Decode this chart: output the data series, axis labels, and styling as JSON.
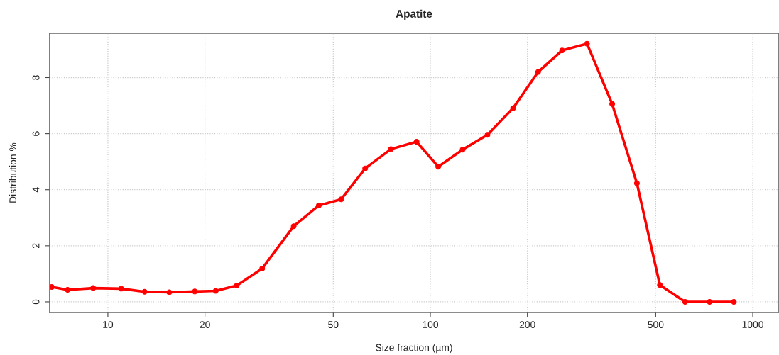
{
  "chart_data": {
    "type": "line",
    "title": "Apatite",
    "xlabel": "Size fraction (µm)",
    "ylabel": "Distribution %",
    "x": [
      6.7,
      7.5,
      9.0,
      11.0,
      13.0,
      15.5,
      18.6,
      21.6,
      25.1,
      30.1,
      37.7,
      45.1,
      52.9,
      62.8,
      75.5,
      90.7,
      105.8,
      125.9,
      150.4,
      180.6,
      215.9,
      256.3,
      306.2,
      366.4,
      437.2,
      515.2,
      616.8,
      734.7,
      873.5
    ],
    "series": [
      {
        "color": "#ff0000",
        "values": [
          0.53,
          0.43,
          0.49,
          0.47,
          0.36,
          0.34,
          0.37,
          0.39,
          0.58,
          1.19,
          2.7,
          3.44,
          3.66,
          4.76,
          5.45,
          5.71,
          4.82,
          5.43,
          5.96,
          6.91,
          8.2,
          8.97,
          9.21,
          7.06,
          4.23,
          0.6,
          0,
          0,
          0
        ]
      }
    ],
    "log": "x",
    "xlim": [
      6.6,
      1200
    ],
    "xticks": [
      10,
      20,
      50,
      100,
      200,
      500,
      1000
    ],
    "ylim": [
      -0.38,
      9.58
    ],
    "yticks": [
      0,
      2,
      4,
      6,
      8
    ],
    "grid": true,
    "marker": "circle",
    "line_style": "solid"
  }
}
